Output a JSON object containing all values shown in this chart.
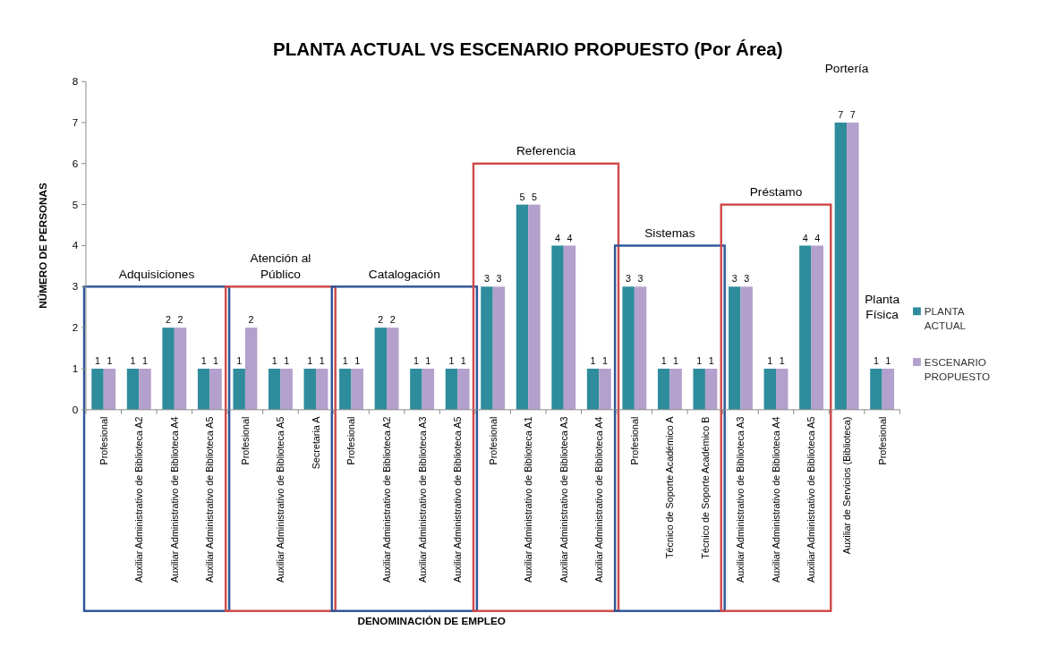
{
  "chart_data": {
    "type": "bar",
    "title": "PLANTA ACTUAL VS ESCENARIO PROPUESTO (Por Área)",
    "xlabel": "DENOMINACIÓN DE EMPLEO",
    "ylabel": "NÚMERO DE PERSONAS",
    "categories": [
      "Profesional",
      "Auxiliar Administrativo de Biblioteca A2",
      "Auxiliar Administrativo de Biblioteca A4",
      "Auxiliar Administrativo de Biblioteca A5",
      "Profesional",
      "Auxiliar Administrativo de Biblioteca A5",
      "Secretaria A",
      "Profesional",
      "Auxiliar Administrativo de Biblioteca A2",
      "Auxiliar Administrativo de Biblioteca A3",
      "Auxiliar Administrativo de Biblioteca A5",
      "Profesional",
      "Auxiliar Administrativo de Biblioteca A1",
      "Auxiliar Administrativo de Biblioteca A3",
      "Auxiliar Administrativo de Biblioteca A4",
      "Profesional",
      "Técnico de Soporte Académico A",
      "Técnico de Soporte Académico B",
      "Auxiliar Administrativo de Biblioteca A3",
      "Auxiliar Administrativo de Biblioteca A4",
      "Auxiliar Administrativo de Biblioteca A5",
      "Auxiliar de Servicios (Biblioteca)",
      "Profesional"
    ],
    "series": [
      {
        "name": "PLANTA ACTUAL",
        "color": "#2e8c9c",
        "values": [
          1,
          1,
          2,
          1,
          1,
          1,
          1,
          1,
          2,
          1,
          1,
          3,
          5,
          4,
          1,
          3,
          1,
          1,
          3,
          1,
          4,
          7,
          1
        ]
      },
      {
        "name": "ESCENARIO PROPUESTO",
        "color": "#b4a0cc",
        "values": [
          1,
          1,
          2,
          1,
          2,
          1,
          1,
          1,
          2,
          1,
          1,
          3,
          5,
          4,
          1,
          3,
          1,
          1,
          3,
          1,
          4,
          7,
          1
        ]
      }
    ],
    "ylim": [
      0,
      8
    ],
    "yticks": [
      0,
      1,
      2,
      3,
      4,
      5,
      6,
      7,
      8
    ],
    "data_labels": true,
    "legend": "right",
    "annotations": [
      "Adquisiciones",
      "Atención al Público",
      "Catalogación",
      "Referencia",
      "Sistemas",
      "Préstamo",
      "Portería",
      "Planta Física"
    ]
  }
}
